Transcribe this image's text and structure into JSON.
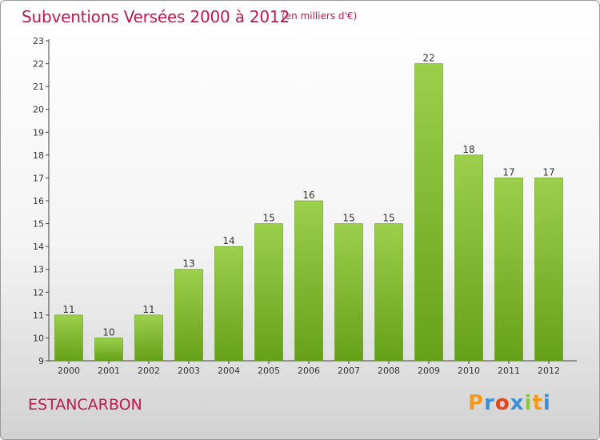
{
  "chart_data": {
    "type": "bar",
    "title": "Subventions Versées 2000 à 2012",
    "subtitle": "(en milliers d'€)",
    "categories": [
      "2000",
      "2001",
      "2002",
      "2003",
      "2004",
      "2005",
      "2006",
      "2007",
      "2008",
      "2009",
      "2010",
      "2011",
      "2012"
    ],
    "values": [
      11,
      10,
      11,
      13,
      14,
      15,
      16,
      15,
      15,
      22,
      18,
      17,
      17
    ],
    "ylim": [
      9,
      23
    ],
    "yticks": [
      9,
      10,
      11,
      12,
      13,
      14,
      15,
      16,
      17,
      18,
      19,
      20,
      21,
      22,
      23
    ],
    "grid": false,
    "bar_color_top": "#9ccf4c",
    "bar_color_bottom": "#66a019"
  },
  "footer": {
    "commune": "ESTANCARBON",
    "logo_text": "Proxiti",
    "logo_colors": [
      "#f29a1e",
      "#3a8fd6",
      "#e2471b",
      "#3a8fd6",
      "#8dc63f",
      "#f29a1e",
      "#3a8fd6"
    ]
  },
  "colors": {
    "title": "#c0174f"
  }
}
